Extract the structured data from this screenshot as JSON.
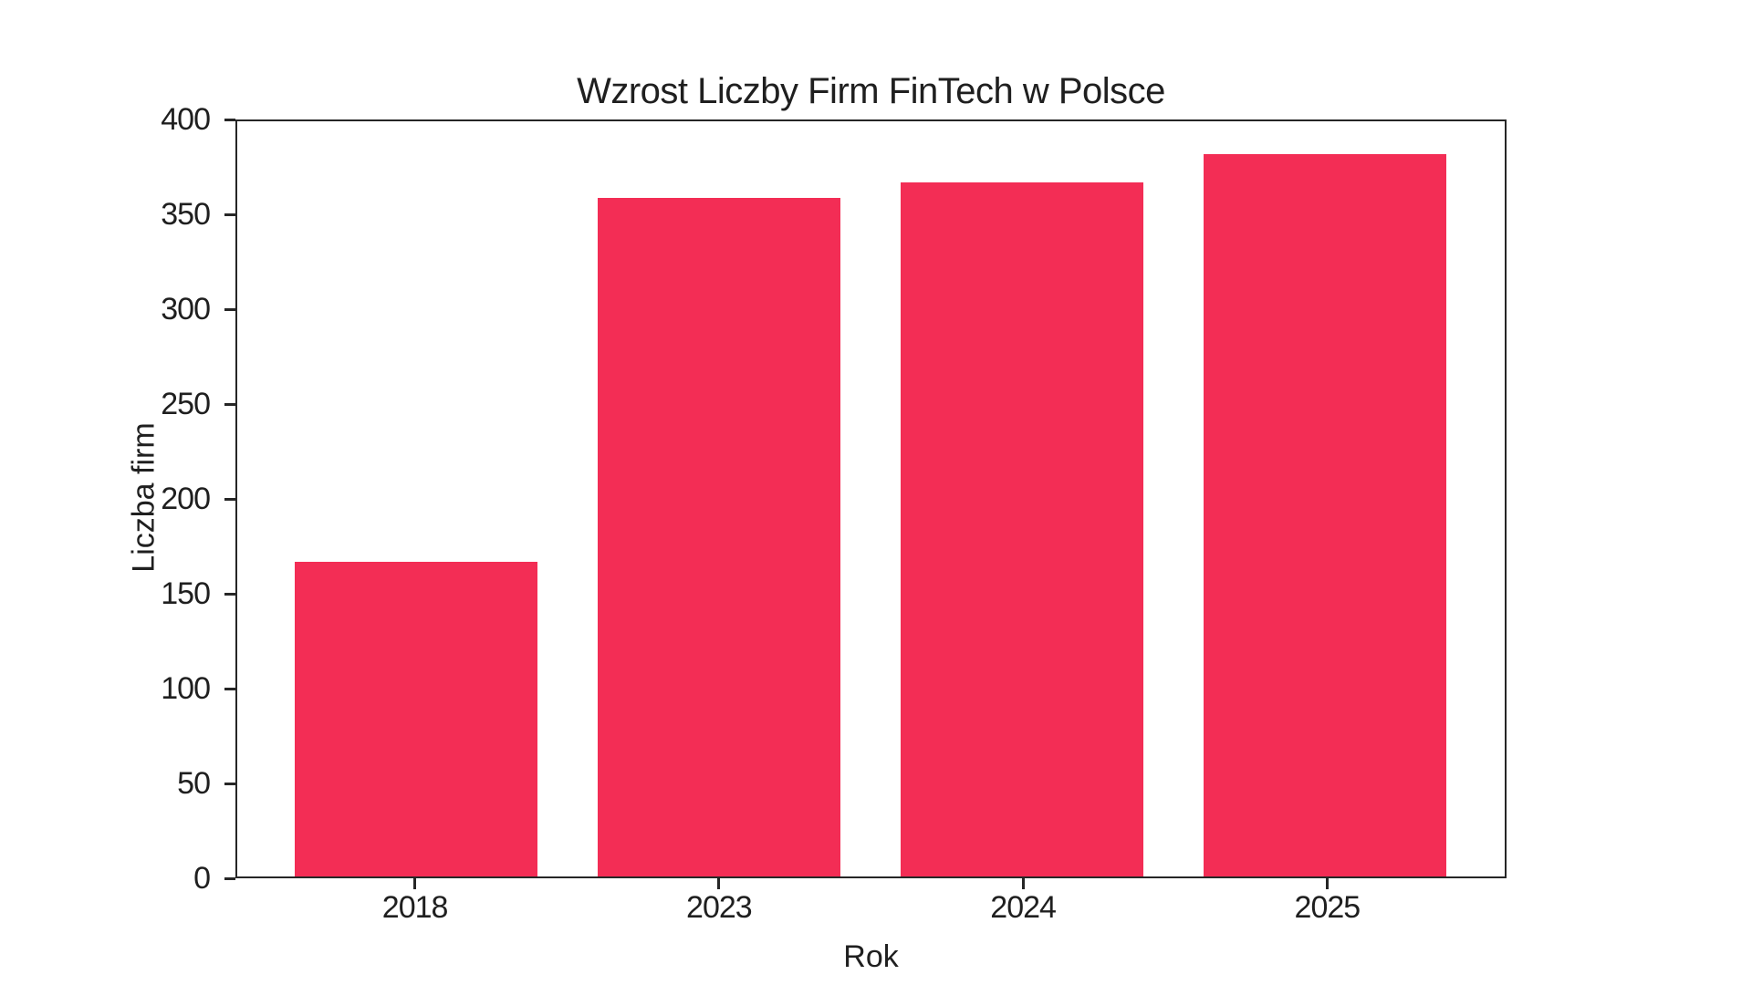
{
  "chart_data": {
    "type": "bar",
    "title": "Wzrost Liczby Firm FinTech w Polsce",
    "xlabel": "Rok",
    "ylabel": "Liczba firm",
    "categories": [
      "2018",
      "2023",
      "2024",
      "2025"
    ],
    "values": [
      167,
      360,
      368,
      383
    ],
    "ylim": [
      0,
      400
    ],
    "yticks": [
      0,
      50,
      100,
      150,
      200,
      250,
      300,
      350,
      400
    ],
    "bar_width_fraction": 0.8,
    "grid": false,
    "legend": "none"
  },
  "colors": {
    "bar": "#F32D55",
    "spine": "#262626",
    "text": "#1f1f1f",
    "background": "#ffffff"
  }
}
